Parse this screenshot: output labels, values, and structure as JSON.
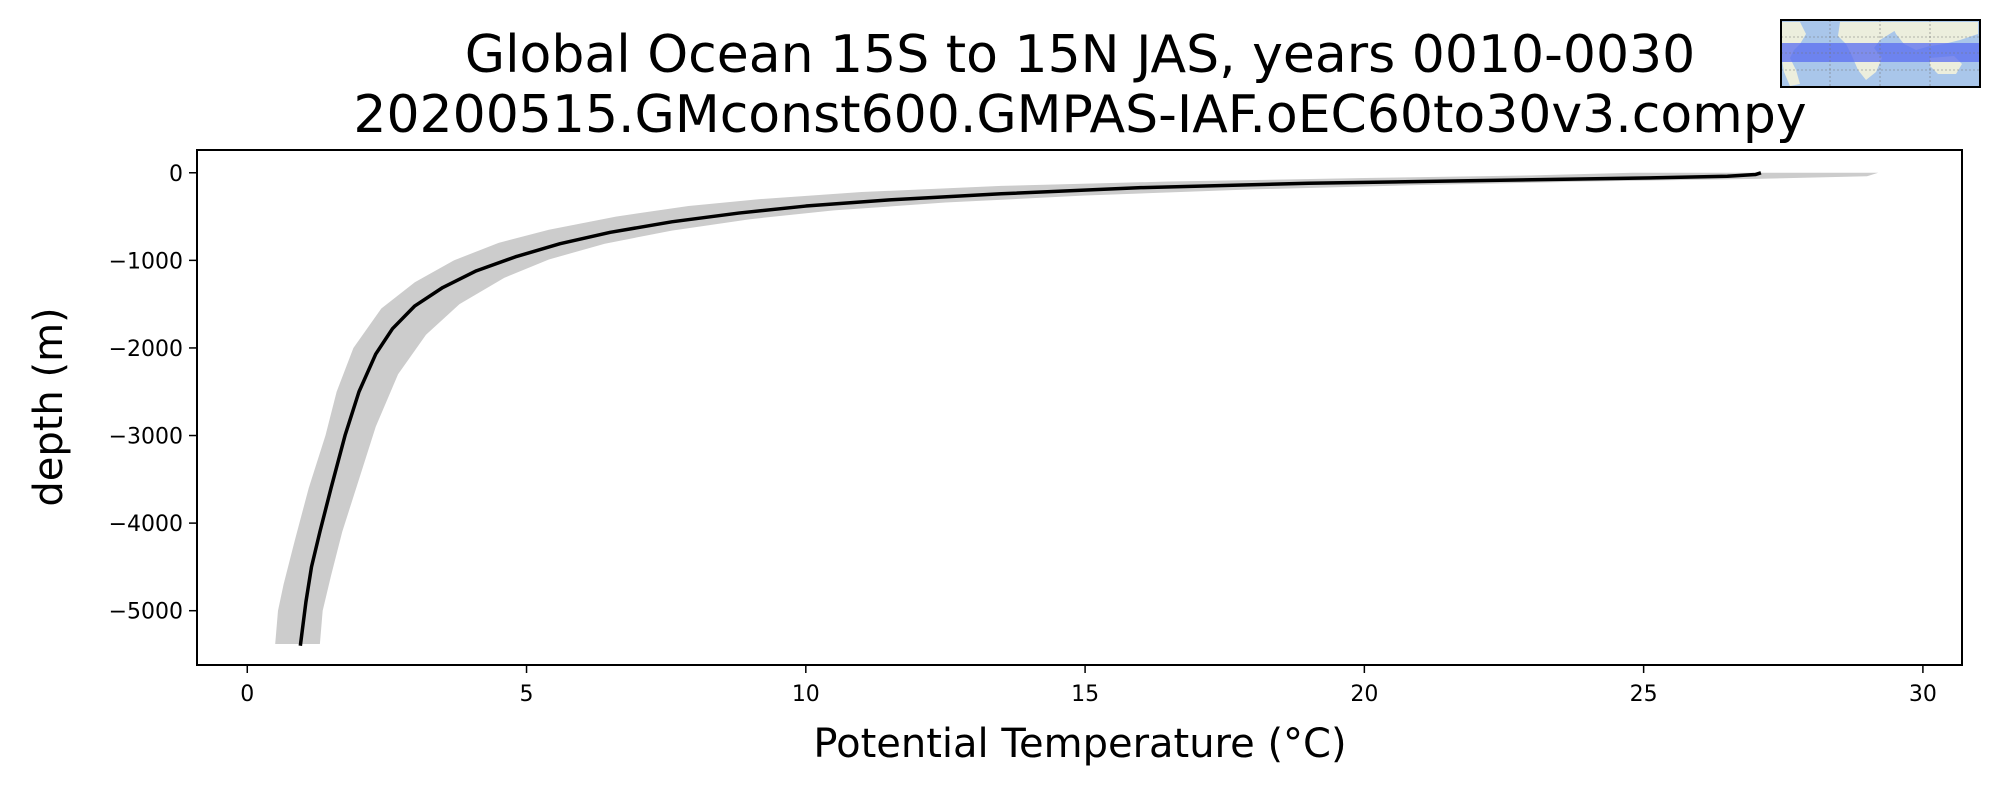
{
  "chart_data": {
    "type": "line",
    "title": "Global Ocean 15S to 15N JAS, years 0010-0030",
    "subtitle": "20200515.GMconst600.GMPAS-IAF.oEC60to30v3.compy",
    "xlabel": "Potential Temperature (°C)",
    "ylabel": "depth (m)",
    "xlim": [
      -0.9,
      30.7
    ],
    "ylim": [
      -5620,
      260
    ],
    "x_ticks": [
      0,
      5,
      10,
      15,
      20,
      25,
      30
    ],
    "x_tick_labels": [
      "0",
      "5",
      "10",
      "15",
      "20",
      "25",
      "30"
    ],
    "y_ticks": [
      0,
      -1000,
      -2000,
      -3000,
      -4000,
      -5000
    ],
    "y_tick_labels": [
      "0",
      "−1000",
      "−2000",
      "−3000",
      "−4000",
      "−5000"
    ],
    "grid": false,
    "colors": {
      "mean_line": "#000000",
      "range_band": "#cccccc"
    },
    "series": [
      {
        "role": "mean",
        "points": [
          [
            27.1,
            0
          ],
          [
            27.0,
            -20
          ],
          [
            26.5,
            -40
          ],
          [
            25.0,
            -60
          ],
          [
            22.0,
            -90
          ],
          [
            19.0,
            -120
          ],
          [
            16.0,
            -170
          ],
          [
            13.5,
            -240
          ],
          [
            11.5,
            -310
          ],
          [
            10.0,
            -380
          ],
          [
            8.8,
            -460
          ],
          [
            7.6,
            -560
          ],
          [
            6.5,
            -680
          ],
          [
            5.6,
            -810
          ],
          [
            4.8,
            -960
          ],
          [
            4.1,
            -1120
          ],
          [
            3.5,
            -1310
          ],
          [
            3.0,
            -1520
          ],
          [
            2.6,
            -1780
          ],
          [
            2.3,
            -2070
          ],
          [
            2.0,
            -2500
          ],
          [
            1.75,
            -3000
          ],
          [
            1.5,
            -3600
          ],
          [
            1.3,
            -4100
          ],
          [
            1.15,
            -4500
          ],
          [
            1.05,
            -4900
          ],
          [
            0.95,
            -5400
          ]
        ]
      }
    ],
    "bands": [
      {
        "role": "range",
        "lower": [
          [
            24.8,
            0
          ],
          [
            23.0,
            -30
          ],
          [
            20.0,
            -60
          ],
          [
            16.5,
            -100
          ],
          [
            13.5,
            -150
          ],
          [
            11.0,
            -220
          ],
          [
            9.2,
            -300
          ],
          [
            7.9,
            -380
          ],
          [
            6.6,
            -500
          ],
          [
            5.4,
            -650
          ],
          [
            4.5,
            -800
          ],
          [
            3.7,
            -1000
          ],
          [
            3.0,
            -1250
          ],
          [
            2.4,
            -1550
          ],
          [
            1.9,
            -2000
          ],
          [
            1.6,
            -2500
          ],
          [
            1.4,
            -3000
          ],
          [
            1.1,
            -3600
          ],
          [
            0.85,
            -4200
          ],
          [
            0.65,
            -4700
          ],
          [
            0.55,
            -5000
          ],
          [
            0.5,
            -5380
          ]
        ],
        "upper": [
          [
            29.2,
            0
          ],
          [
            29.0,
            -40
          ],
          [
            27.0,
            -70
          ],
          [
            24.0,
            -100
          ],
          [
            21.0,
            -140
          ],
          [
            18.0,
            -190
          ],
          [
            15.0,
            -260
          ],
          [
            12.5,
            -340
          ],
          [
            10.5,
            -430
          ],
          [
            9.0,
            -530
          ],
          [
            7.6,
            -660
          ],
          [
            6.4,
            -810
          ],
          [
            5.4,
            -990
          ],
          [
            4.6,
            -1200
          ],
          [
            3.8,
            -1500
          ],
          [
            3.2,
            -1850
          ],
          [
            2.7,
            -2300
          ],
          [
            2.3,
            -2900
          ],
          [
            2.0,
            -3500
          ],
          [
            1.7,
            -4100
          ],
          [
            1.5,
            -4600
          ],
          [
            1.35,
            -5000
          ],
          [
            1.3,
            -5380
          ]
        ]
      }
    ]
  },
  "inset_map": {
    "name": "region-map",
    "band_color": "#5a6cf0",
    "ocean_color": "#a9c6ea",
    "land_color": "#eceedd"
  }
}
